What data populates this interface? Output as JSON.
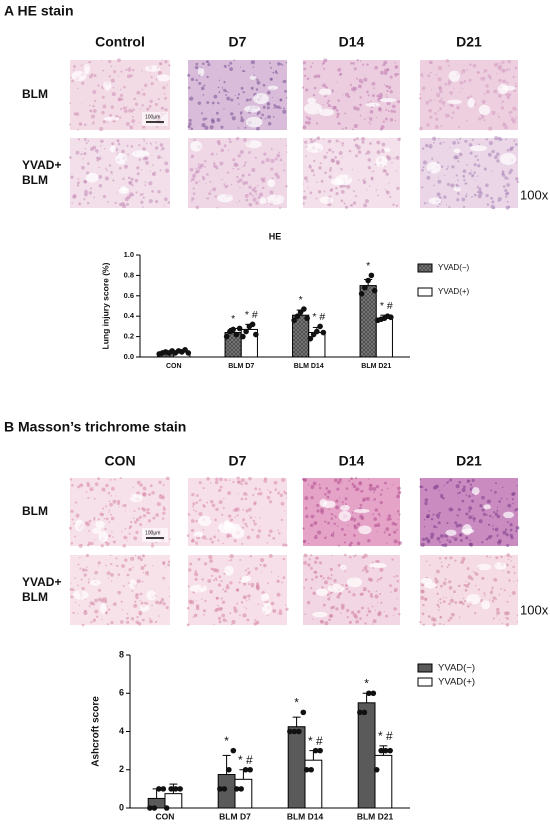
{
  "panels": [
    {
      "title": "A HE stain",
      "columns": [
        "Control",
        "D7",
        "D14",
        "D21"
      ],
      "rows": [
        [
          "BLM"
        ],
        [
          "YVAD+",
          "BLM"
        ]
      ],
      "scale_bar": "100μm",
      "magnification": "100x"
    },
    {
      "title": "B Masson’s trichrome stain",
      "columns": [
        "CON",
        "D7",
        "D14",
        "D21"
      ],
      "rows": [
        [
          "BLM"
        ],
        [
          "YVAD+",
          "BLM"
        ]
      ],
      "scale_bar": "100μm",
      "magnification": "100x"
    }
  ],
  "chart_data": [
    {
      "type": "bar",
      "title": "HE",
      "y_label": "Lung injury score (%)",
      "categories": [
        "CON",
        "BLM D7",
        "BLM D14",
        "BLM D21"
      ],
      "series": [
        {
          "name": "YVAD(−)",
          "color": "#4d4d4d",
          "pattern": "crosshatch",
          "values": [
            0.04,
            0.24,
            0.41,
            0.7
          ],
          "errors": [
            0.02,
            0.04,
            0.05,
            0.06
          ],
          "points": [
            [
              0.03,
              0.04,
              0.05,
              0.04,
              0.06
            ],
            [
              0.2,
              0.25,
              0.27,
              0.22,
              0.28
            ],
            [
              0.36,
              0.4,
              0.44,
              0.47,
              0.38
            ],
            [
              0.62,
              0.68,
              0.75,
              0.8,
              0.65
            ]
          ],
          "annotations": [
            null,
            "*",
            "*",
            "*"
          ]
        },
        {
          "name": "YVAD(+)",
          "color": "#ffffff",
          "values": [
            0.05,
            0.27,
            0.24,
            0.38
          ],
          "errors": [
            0.02,
            0.05,
            0.05,
            0.03
          ],
          "points": [
            [
              0.04,
              0.06,
              0.05,
              0.07,
              0.04
            ],
            [
              0.2,
              0.25,
              0.3,
              0.32,
              0.22
            ],
            [
              0.18,
              0.22,
              0.25,
              0.3,
              0.24
            ],
            [
              0.36,
              0.37,
              0.38,
              0.4,
              0.39
            ]
          ],
          "annotations": [
            null,
            "* #",
            "* #",
            "* #"
          ]
        }
      ],
      "ylim": [
        0,
        1
      ],
      "yticks": [
        {
          "value": 0,
          "label": "0.0"
        },
        {
          "value": 0.2,
          "label": "0.2"
        },
        {
          "value": 0.4,
          "label": "0.4"
        },
        {
          "value": 0.6,
          "label": "0.6"
        },
        {
          "value": 0.8,
          "label": "0.8"
        },
        {
          "value": 1,
          "label": "1.0"
        }
      ],
      "legend": "right"
    },
    {
      "type": "bar",
      "y_label": "Ashcroft score",
      "categories": [
        "CON",
        "BLM D7",
        "BLM D14",
        "BLM D21"
      ],
      "series": [
        {
          "name": "YVAD(−)",
          "color": "#5a5a5a",
          "values": [
            0.5,
            1.75,
            4.25,
            5.5
          ],
          "errors": [
            0.5,
            1.0,
            0.5,
            0.5
          ],
          "points": [
            [
              0,
              0,
              1,
              1
            ],
            [
              1,
              1,
              2,
              3
            ],
            [
              4,
              4,
              4,
              5
            ],
            [
              5,
              5,
              6,
              6
            ]
          ],
          "annotations": [
            null,
            "*",
            "*",
            "*"
          ]
        },
        {
          "name": "YVAD(+)",
          "color": "#ffffff",
          "values": [
            0.75,
            1.5,
            2.5,
            2.75
          ],
          "errors": [
            0.5,
            0.5,
            0.5,
            0.5
          ],
          "points": [
            [
              0,
              1,
              1,
              1
            ],
            [
              1,
              1,
              2,
              2
            ],
            [
              2,
              2,
              3,
              3
            ],
            [
              2,
              3,
              3,
              3
            ]
          ],
          "annotations": [
            null,
            "* #",
            "* #",
            "* #"
          ]
        }
      ],
      "ylim": [
        0,
        8
      ],
      "yticks": [
        0,
        2,
        4,
        6,
        8
      ],
      "legend": "right"
    }
  ]
}
